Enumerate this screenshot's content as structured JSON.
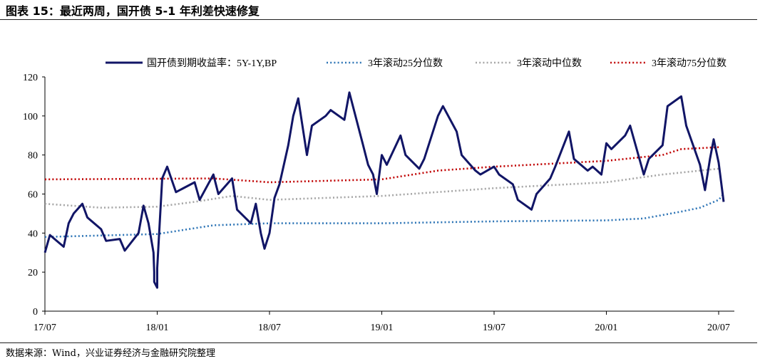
{
  "figure": {
    "title": "图表 15：最近两周，国开债 5-1 年利差快速修复",
    "source": "数据来源：Wind，兴业证券经济与金融研究院整理"
  },
  "chart_data": {
    "type": "line",
    "title": "",
    "xlabel": "",
    "ylabel": "",
    "ylim": [
      0,
      120
    ],
    "yticks": [
      0,
      20,
      40,
      60,
      80,
      100,
      120
    ],
    "x_ticks": [
      "17/07",
      "18/01",
      "18/07",
      "19/01",
      "19/07",
      "20/01",
      "20/07"
    ],
    "grid": false,
    "legend_position": "top",
    "colors": {
      "spread": "#111566",
      "q25": "#2e75b6",
      "median": "#a6a6a6",
      "q75": "#c00000"
    },
    "series": [
      {
        "name": "国开债到期收益率：5Y-1Y,BP",
        "key": "spread",
        "style": "solid",
        "points": [
          [
            "17/07",
            30
          ],
          [
            "17/07+",
            39
          ],
          [
            "17/08",
            33
          ],
          [
            "17/08+",
            45
          ],
          [
            "17/08++",
            50
          ],
          [
            "17/09",
            55
          ],
          [
            "17/09+",
            48
          ],
          [
            "17/10",
            42
          ],
          [
            "17/10+",
            36
          ],
          [
            "17/11",
            37
          ],
          [
            "17/11+",
            31
          ],
          [
            "17/12",
            40
          ],
          [
            "17/12+",
            54
          ],
          [
            "17/12++",
            45
          ],
          [
            "17/12+++",
            30
          ],
          [
            "17/12^",
            20
          ],
          [
            "18/01-",
            15
          ],
          [
            "18/01-+",
            12
          ],
          [
            "18/01",
            22
          ],
          [
            "18/01+",
            68
          ],
          [
            "18/01++",
            74
          ],
          [
            "18/02",
            61
          ],
          [
            "18/03",
            66
          ],
          [
            "18/03+",
            57
          ],
          [
            "18/04",
            70
          ],
          [
            "18/04+",
            60
          ],
          [
            "18/05",
            68
          ],
          [
            "18/05+",
            52
          ],
          [
            "18/06",
            45
          ],
          [
            "18/06+",
            55
          ],
          [
            "18/06++",
            40
          ],
          [
            "18/07-",
            32
          ],
          [
            "18/07",
            40
          ],
          [
            "18/07+",
            58
          ],
          [
            "18/07++",
            65
          ],
          [
            "18/08",
            85
          ],
          [
            "18/08+",
            100
          ],
          [
            "18/08++",
            109
          ],
          [
            "18/09",
            80
          ],
          [
            "18/09+",
            95
          ],
          [
            "18/10",
            100
          ],
          [
            "18/10+",
            103
          ],
          [
            "18/11",
            98
          ],
          [
            "18/11+",
            112
          ],
          [
            "18/12",
            85
          ],
          [
            "18/12+",
            75
          ],
          [
            "18/12++",
            70
          ],
          [
            "19/01-",
            60
          ],
          [
            "19/01",
            80
          ],
          [
            "19/01+",
            75
          ],
          [
            "19/02",
            90
          ],
          [
            "19/02+",
            80
          ],
          [
            "19/03",
            73
          ],
          [
            "19/03+",
            78
          ],
          [
            "19/04",
            100
          ],
          [
            "19/04+",
            105
          ],
          [
            "19/05",
            92
          ],
          [
            "19/05+",
            80
          ],
          [
            "19/06",
            72
          ],
          [
            "19/06+",
            70
          ],
          [
            "19/07",
            74
          ],
          [
            "19/07+",
            70
          ],
          [
            "19/08",
            65
          ],
          [
            "19/08+",
            57
          ],
          [
            "19/09",
            52
          ],
          [
            "19/09+",
            60
          ],
          [
            "19/10",
            68
          ],
          [
            "19/10+",
            74
          ],
          [
            "19/11",
            92
          ],
          [
            "19/11+",
            78
          ],
          [
            "19/12",
            72
          ],
          [
            "19/12+",
            74
          ],
          [
            "20/01-",
            70
          ],
          [
            "20/01",
            86
          ],
          [
            "20/01+",
            83
          ],
          [
            "20/02",
            90
          ],
          [
            "20/02+",
            95
          ],
          [
            "20/03",
            70
          ],
          [
            "20/03+",
            78
          ],
          [
            "20/04",
            85
          ],
          [
            "20/04+",
            105
          ],
          [
            "20/05",
            110
          ],
          [
            "20/05+",
            95
          ],
          [
            "20/06",
            75
          ],
          [
            "20/06+",
            62
          ],
          [
            "20/06++",
            78
          ],
          [
            "20/07-",
            88
          ],
          [
            "20/07",
            76
          ],
          [
            "20/07+",
            56
          ]
        ]
      },
      {
        "name": "3年滚动25分位数",
        "key": "q25",
        "style": "dotted",
        "points": [
          [
            "17/07",
            38
          ],
          [
            "18/01",
            39.5
          ],
          [
            "18/04",
            44
          ],
          [
            "18/07",
            45
          ],
          [
            "19/01",
            45
          ],
          [
            "19/07",
            46
          ],
          [
            "20/01",
            46.5
          ],
          [
            "20/03",
            47.5
          ],
          [
            "20/05",
            51
          ],
          [
            "20/06",
            53
          ],
          [
            "20/07",
            57
          ],
          [
            "20/07+",
            60
          ]
        ]
      },
      {
        "name": "3年滚动中位数",
        "key": "median",
        "style": "dotted",
        "points": [
          [
            "17/07",
            55
          ],
          [
            "17/10",
            53
          ],
          [
            "18/01",
            53.5
          ],
          [
            "18/03",
            56
          ],
          [
            "18/05",
            59
          ],
          [
            "18/07",
            57
          ],
          [
            "19/01",
            59
          ],
          [
            "19/07",
            63
          ],
          [
            "20/01",
            66
          ],
          [
            "20/04",
            70
          ],
          [
            "20/07",
            73
          ]
        ]
      },
      {
        "name": "3年滚动75分位数",
        "key": "q75",
        "style": "dotted",
        "points": [
          [
            "17/07",
            67.5
          ],
          [
            "18/04",
            68
          ],
          [
            "18/07",
            66
          ],
          [
            "19/01",
            67.5
          ],
          [
            "19/04",
            72
          ],
          [
            "19/07",
            74
          ],
          [
            "20/01",
            77
          ],
          [
            "20/04",
            80
          ],
          [
            "20/05",
            83
          ],
          [
            "20/07",
            84
          ]
        ]
      }
    ]
  }
}
